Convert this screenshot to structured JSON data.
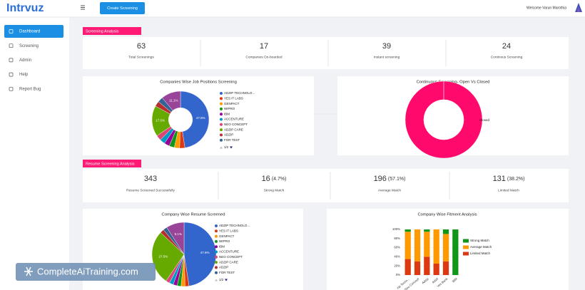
{
  "header": {
    "logo": "Intrvuz",
    "button": "Create Screening",
    "welcome": "Welcome Varun Marothia"
  },
  "sidebar": {
    "items": [
      "Dashboard",
      "Screening",
      "Admin",
      "Help",
      "Report Bug"
    ],
    "active": 0
  },
  "screening_analysis": {
    "title": "Screening Analysis",
    "stats": [
      {
        "value": 63,
        "label": "Total Screenings"
      },
      {
        "value": 17,
        "label": "Companies On-boarded"
      },
      {
        "value": 39,
        "label": "Instant screening"
      },
      {
        "value": 24,
        "label": "Continous Screening"
      }
    ]
  },
  "resume_analysis": {
    "title": "Resume Screening Analysis",
    "stats": [
      {
        "value": 343,
        "label": "Resume Screened Successfully"
      },
      {
        "value": 16,
        "percent": "(4.7%)",
        "label": "Strong Match"
      },
      {
        "value": 196,
        "percent": "(57.1%)",
        "label": "Average Match"
      },
      {
        "value": 131,
        "percent": "(38.2%)",
        "label": "Limited Match"
      }
    ]
  },
  "charts": [
    {
      "type": "pie",
      "title": "Companies Wise Job Positions Screening",
      "hole": 0.42,
      "categories": [
        "ADZIP TECHNOLO...",
        "YES IT LABS",
        "GENPACT",
        "WIPRO",
        "IBM",
        "ACCENTURE",
        "NEO CONCEPT",
        "ADZIP CARE",
        "ADZIP",
        "FOR TEST",
        null
      ],
      "colors": [
        "#3366cc",
        "#dc3912",
        "#ff9900",
        "#109618",
        "#990099",
        "#0099c6",
        "#dd4477",
        "#66aa00",
        "#b82e2e",
        "#316395",
        "#994499"
      ],
      "values": [
        47.6,
        3,
        3,
        3,
        3,
        3,
        3,
        17.5,
        3,
        3,
        11.1
      ],
      "value_labels": [
        "47.6%",
        null,
        null,
        null,
        null,
        null,
        null,
        "17.5%",
        null,
        null,
        "11.1%"
      ],
      "legend_page": "1/2"
    },
    {
      "type": "pie",
      "title": "Continuous Screening- Open Vs Closed",
      "hole": 0.52,
      "categories": [
        "Closed"
      ],
      "colors": [
        "#ff0a6c"
      ],
      "values": [
        100
      ]
    },
    {
      "type": "pie",
      "title": "Company Wise Resume Screened",
      "hole": 0,
      "categories": [
        "ADZIP TECHNOLO...",
        "YES IT LABS",
        "GENPACT",
        "WIPRO",
        "IBM",
        "ACCENTURE",
        "NEO CONCEPT",
        "ADZIP CARE",
        "ADZIP",
        "FOR TEST",
        null
      ],
      "colors": [
        "#3366cc",
        "#dc3912",
        "#ff9900",
        "#109618",
        "#990099",
        "#0099c6",
        "#dd4477",
        "#66aa00",
        "#b82e2e",
        "#316395",
        "#994499"
      ],
      "values": [
        47.6,
        2,
        2,
        2,
        2,
        2,
        2,
        27.5,
        2,
        2,
        9.1
      ],
      "value_labels": [
        "47.6%",
        null,
        null,
        null,
        null,
        null,
        null,
        "27.5%",
        null,
        null,
        "9.1%"
      ],
      "legend_page": "1/2"
    },
    {
      "type": "stacked_bar",
      "title": "Company Wise Fitment Analysis",
      "categories": [
        "zip Techn...",
        "Neo Concept",
        "Adzip",
        "Adzit",
        "Yes Bank",
        "IBM"
      ],
      "ylim": [
        0,
        100
      ],
      "yticks": [
        {
          "value": 0,
          "label": "0%"
        },
        {
          "value": 20,
          "label": "20%"
        },
        {
          "value": 40,
          "label": "40%"
        },
        {
          "value": 60,
          "label": "60%"
        },
        {
          "value": 80,
          "label": "80%"
        },
        {
          "value": 100,
          "label": "100%"
        }
      ],
      "series": [
        {
          "name": "Strong Match",
          "color": "#109618",
          "values": [
            5,
            0,
            5,
            0,
            10,
            100
          ]
        },
        {
          "name": "Average Match",
          "color": "#ff9900",
          "values": [
            60,
            70,
            55,
            75,
            60,
            0
          ]
        },
        {
          "name": "Limited Match",
          "color": "#dc3912",
          "values": [
            35,
            30,
            40,
            25,
            30,
            0
          ]
        }
      ]
    }
  ],
  "watermark": "CompleteAiTraining.com"
}
